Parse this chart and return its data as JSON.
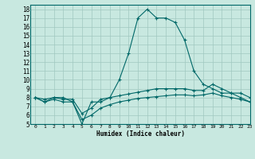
{
  "xlabel": "Humidex (Indice chaleur)",
  "ylabel": "",
  "xlim": [
    -0.5,
    23
  ],
  "ylim": [
    5,
    18.5
  ],
  "xticks": [
    0,
    1,
    2,
    3,
    4,
    5,
    6,
    7,
    8,
    9,
    10,
    11,
    12,
    13,
    14,
    15,
    16,
    17,
    18,
    19,
    20,
    21,
    22,
    23
  ],
  "yticks": [
    5,
    6,
    7,
    8,
    9,
    10,
    11,
    12,
    13,
    14,
    15,
    16,
    17,
    18
  ],
  "background_color": "#c8e8e0",
  "grid_color": "#a0c8c0",
  "line_color": "#006868",
  "line1_x": [
    0,
    1,
    2,
    3,
    4,
    5,
    6,
    7,
    8,
    9,
    10,
    11,
    12,
    13,
    14,
    15,
    16,
    17,
    18,
    19,
    20,
    21,
    22,
    23
  ],
  "line1_y": [
    8.0,
    7.5,
    8.0,
    8.0,
    7.5,
    5.0,
    7.5,
    7.5,
    8.0,
    10.0,
    13.0,
    17.0,
    18.0,
    17.0,
    17.0,
    16.5,
    14.5,
    11.0,
    9.5,
    9.0,
    8.5,
    8.5,
    8.0,
    7.5
  ],
  "line2_x": [
    0,
    1,
    2,
    3,
    4,
    5,
    6,
    7,
    8,
    9,
    10,
    11,
    12,
    13,
    14,
    15,
    16,
    17,
    18,
    19,
    20,
    21,
    22,
    23
  ],
  "line2_y": [
    8.0,
    7.8,
    8.0,
    7.8,
    7.8,
    6.2,
    6.8,
    7.8,
    8.0,
    8.2,
    8.4,
    8.6,
    8.8,
    9.0,
    9.0,
    9.0,
    9.0,
    8.8,
    8.8,
    9.5,
    9.0,
    8.5,
    8.5,
    8.0
  ],
  "line3_x": [
    0,
    1,
    2,
    3,
    4,
    5,
    6,
    7,
    8,
    9,
    10,
    11,
    12,
    13,
    14,
    15,
    16,
    17,
    18,
    19,
    20,
    21,
    22,
    23
  ],
  "line3_y": [
    8.0,
    7.5,
    7.8,
    7.5,
    7.5,
    5.5,
    6.0,
    6.8,
    7.2,
    7.5,
    7.7,
    7.9,
    8.0,
    8.1,
    8.2,
    8.3,
    8.3,
    8.2,
    8.3,
    8.5,
    8.2,
    8.0,
    7.8,
    7.5
  ]
}
